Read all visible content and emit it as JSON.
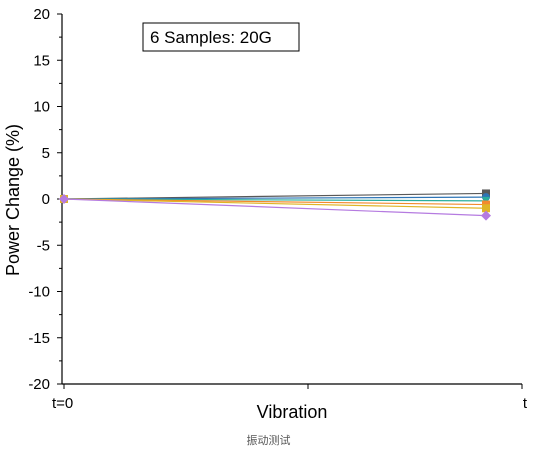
{
  "caption": "振动测试",
  "chart_data": {
    "type": "line",
    "annotation": "6 Samples: 20G",
    "xlabel": "Vibration",
    "ylabel": "Power Change (%)",
    "categories": [
      "t=0",
      "t"
    ],
    "ylim": [
      -20,
      20
    ],
    "yticks": [
      20,
      15,
      10,
      5,
      0,
      -5,
      -10,
      -15,
      -20
    ],
    "grid": false,
    "series": [
      {
        "color": "#595959",
        "marker": "square",
        "values": [
          0,
          0.6
        ]
      },
      {
        "color": "#2E75B6",
        "marker": "circle",
        "values": [
          0,
          0.2
        ]
      },
      {
        "color": "#2BAE9C",
        "marker": "triangle",
        "values": [
          0,
          -0.2
        ]
      },
      {
        "color": "#F28A2E",
        "marker": "square",
        "values": [
          0,
          -0.6
        ]
      },
      {
        "color": "#E0B526",
        "marker": "square",
        "values": [
          0,
          -1.0
        ]
      },
      {
        "color": "#B57BE0",
        "marker": "diamond",
        "values": [
          0,
          -1.8
        ]
      }
    ]
  }
}
